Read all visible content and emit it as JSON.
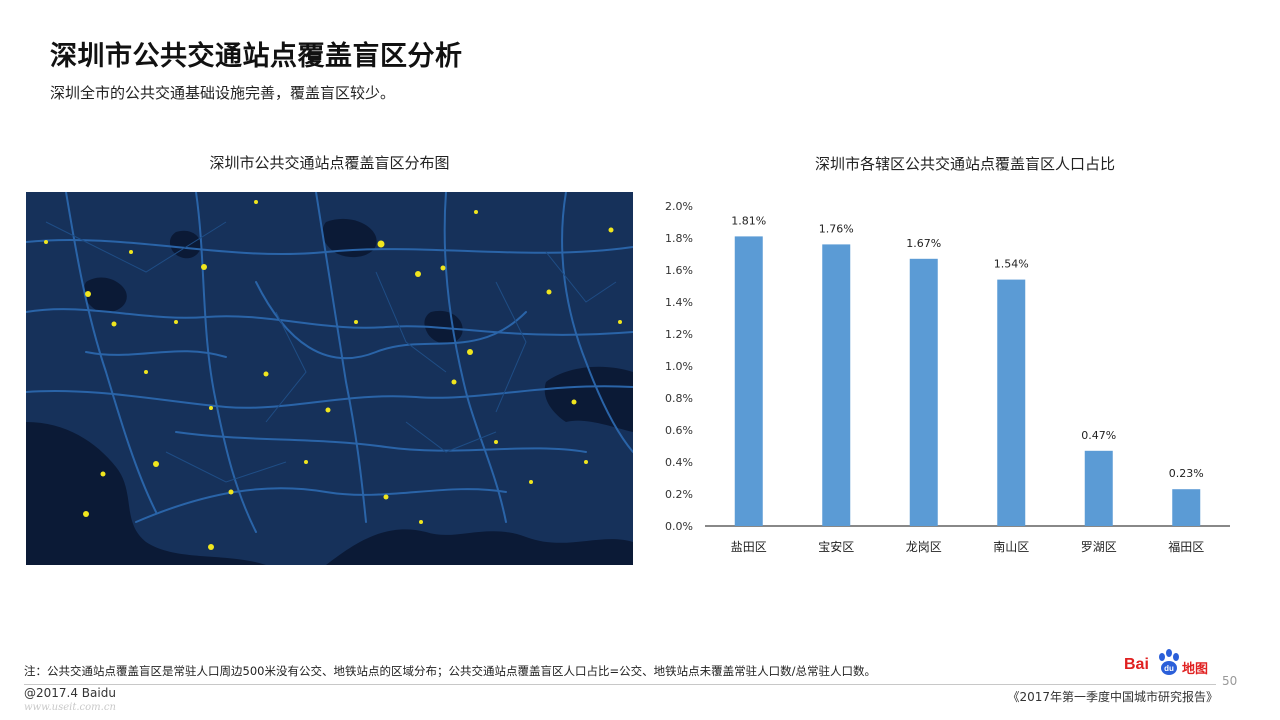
{
  "header": {
    "title": "深圳市公共交通站点覆盖盲区分析",
    "subtitle": "深圳全市的公共交通基础设施完善，覆盖盲区较少。"
  },
  "map": {
    "title": "深圳市公共交通站点覆盖盲区分布图",
    "colors": {
      "background": "#0b1a36",
      "land": "#16315a",
      "water": "#0b1a36",
      "roads": "#2a64a8",
      "blindspots": "#f0e61e"
    }
  },
  "chart_data": {
    "type": "bar",
    "title": "深圳市各辖区公共交通站点覆盖盲区人口占比",
    "categories": [
      "盐田区",
      "宝安区",
      "龙岗区",
      "南山区",
      "罗湖区",
      "福田区"
    ],
    "values": [
      1.81,
      1.76,
      1.67,
      1.54,
      0.47,
      0.23
    ],
    "value_labels": [
      "1.81%",
      "1.76%",
      "1.67%",
      "1.54%",
      "0.47%",
      "0.23%"
    ],
    "y_ticks": [
      "0.0%",
      "0.2%",
      "0.4%",
      "0.6%",
      "0.8%",
      "1.0%",
      "1.2%",
      "1.4%",
      "1.6%",
      "1.8%",
      "2.0%"
    ],
    "ylim": [
      0,
      2.0
    ],
    "xlabel": "",
    "ylabel": "",
    "grid": false,
    "legend": "none",
    "bar_color": "#5b9bd5",
    "axis_color": "#888888"
  },
  "footer": {
    "note": "注：公共交通站点覆盖盲区是常驻人口周边500米没有公交、地铁站点的区域分布；公共交通站点覆盖盲区人口占比=公交、地铁站点未覆盖常驻人口数/总常驻人口数。",
    "copyright": "@2017.4 Baidu",
    "watermark": "www.useit.com.cn",
    "report": "《2017年第一季度中国城市研究报告》",
    "page_number": "50",
    "logo_bai": "Bai",
    "logo_map": "地图",
    "logo_du": "du"
  }
}
